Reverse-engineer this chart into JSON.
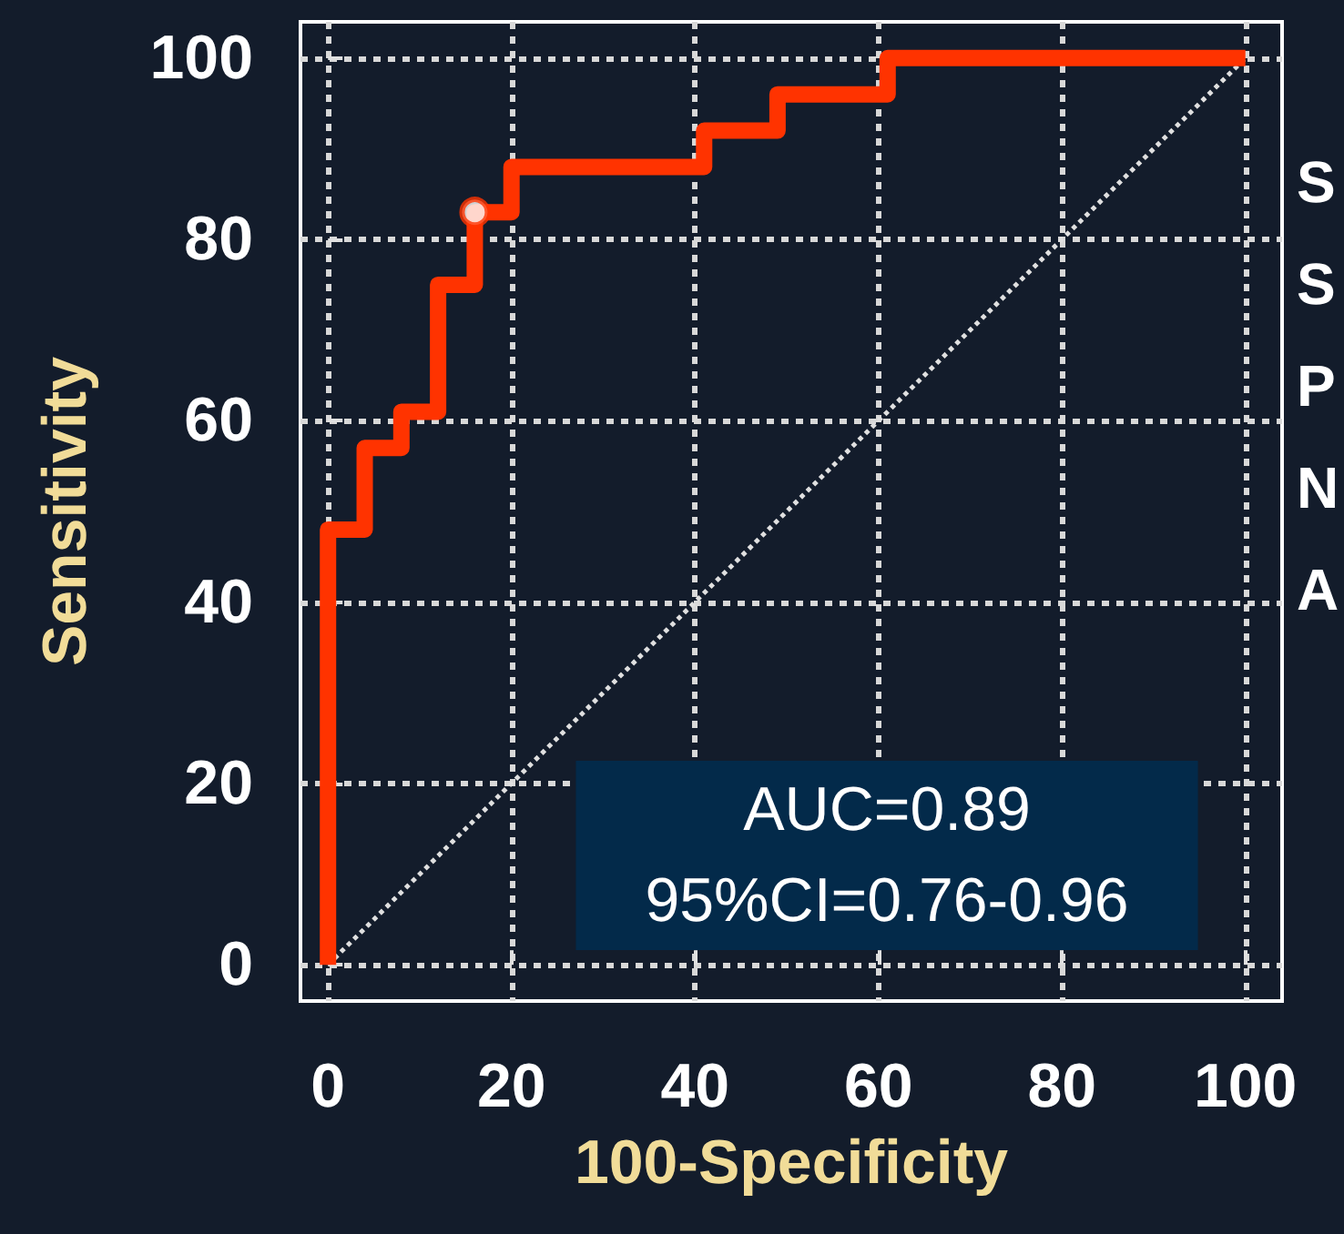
{
  "chart_data": {
    "type": "step",
    "xlabel": "100-Specificity",
    "ylabel": "Sensitivity",
    "x": [
      0,
      0,
      4,
      8,
      12,
      16,
      20,
      41,
      49,
      61,
      100
    ],
    "series": [
      {
        "color": "#ff3300",
        "values": [
          0,
          48,
          57,
          61,
          75,
          83,
          88,
          92,
          96,
          100,
          100
        ]
      },
      {
        "type": "scatter",
        "color": "#ffffff",
        "x": [
          16
        ],
        "values": [
          83
        ],
        "marker": "circle"
      },
      {
        "type": "line",
        "color": "#e0e0e0",
        "x": [
          0,
          100
        ],
        "values": [
          0,
          100
        ],
        "line_style": "dotted"
      }
    ],
    "xlim": [
      -3,
      104
    ],
    "ylim": [
      -4,
      104
    ],
    "xticks": [
      0,
      20,
      40,
      60,
      80,
      100
    ],
    "yticks": [
      0,
      20,
      40,
      60,
      80,
      100
    ],
    "grid": true,
    "line_style": "solid",
    "marker": "none",
    "annotations": [
      "AUC=0.89",
      "95%CI=0.76-0.96",
      "S",
      "S",
      "P",
      "N",
      "A"
    ]
  }
}
